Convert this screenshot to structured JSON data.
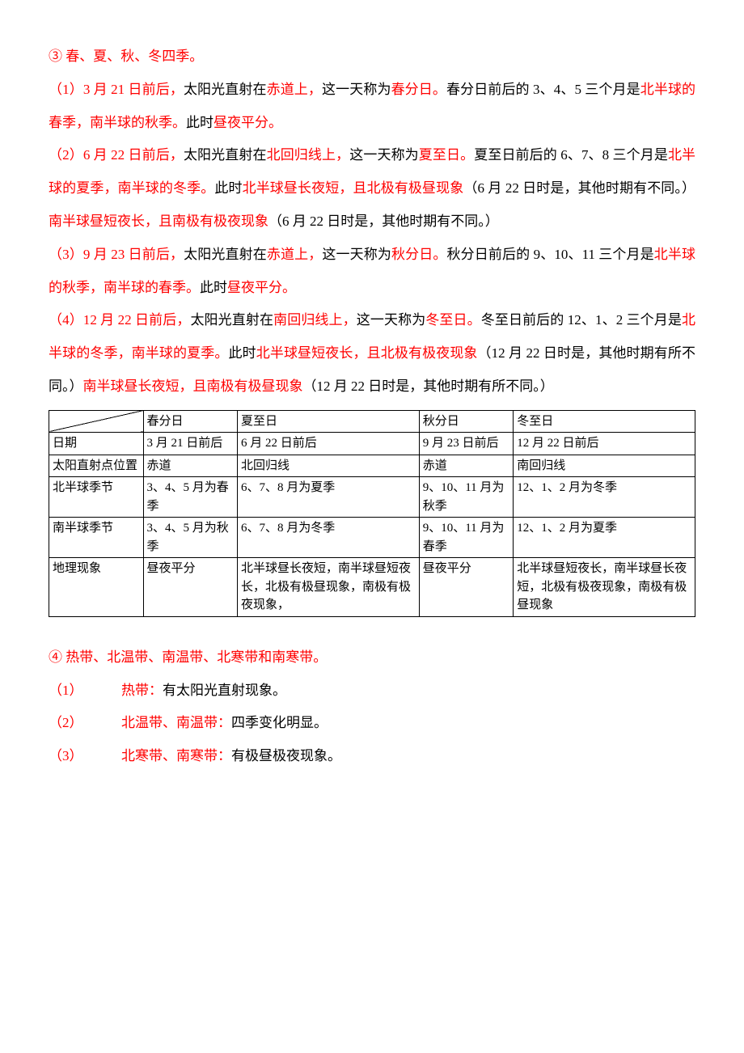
{
  "section3": {
    "title": "③ 春、夏、秋、冬四季。",
    "p1_a": "（1）3 月 21 日前后，",
    "p1_b": "太阳光直射在",
    "p1_c": "赤道上，",
    "p1_d": "这一天称为",
    "p1_e": "春分日。",
    "p1_f": "春分日前后的 3、4、5 三个月是",
    "p1_g": "北半球的春季，南半球的秋季。",
    "p1_h": "此时",
    "p1_i": "昼夜平分。",
    "p2_a": "（2）6 月 22 日前后，",
    "p2_b": "太阳光直射在",
    "p2_c": "北回归线上，",
    "p2_d": "这一天称为",
    "p2_e": "夏至日。",
    "p2_f": "夏至日前后的 6、7、8 三个月是",
    "p2_g": "北半球的夏季，南半球的冬季。",
    "p2_h": "此时",
    "p2_i": "北半球昼长夜短，且北极有极昼现象",
    "p2_j": "（6 月 22 日时是，其他时期有不同。）",
    "p2_k": "南半球昼短夜长，且南极有极夜现象",
    "p2_l": "（6 月 22 日时是，其他时期有不同。）",
    "p3_a": "（3）9 月 23 日前后，",
    "p3_b": "太阳光直射在",
    "p3_c": "赤道上，",
    "p3_d": "这一天称为",
    "p3_e": "秋分日。",
    "p3_f": "秋分日前后的 9、10、11 三个月是",
    "p3_g": "北半球的秋季，南半球的春季。",
    "p3_h": "此时",
    "p3_i": "昼夜平分。",
    "p4_a": "（4）12 月 22 日前后，",
    "p4_b": "太阳光直射在",
    "p4_c": "南回归线上，",
    "p4_d": "这一天称为",
    "p4_e": "冬至日。",
    "p4_f": "冬至日前后的 12、1、2 三个月是",
    "p4_g": "北半球的冬季，南半球的夏季。",
    "p4_h": "此时",
    "p4_i": "北半球昼短夜长，且北极有极夜现象",
    "p4_j": "（12 月 22 日时是，其他时期有所不同。）",
    "p4_k": "南半球昼长夜短，且南极有极昼现象",
    "p4_l": "（12 月 22 日时是，其他时期有所不同。）"
  },
  "table": {
    "col_widths": [
      "14%",
      "14%",
      "27%",
      "14%",
      "27%"
    ],
    "headers": [
      "",
      "春分日",
      "夏至日",
      "秋分日",
      "冬至日"
    ],
    "rows": [
      {
        "label": "日期",
        "cells": [
          "3 月 21 日前后",
          "6 月 22 日前后",
          "9 月 23 日前后",
          "12 月 22 日前后"
        ]
      },
      {
        "label": "太阳直射点位置",
        "cells": [
          "赤道",
          "北回归线",
          "赤道",
          "南回归线"
        ]
      },
      {
        "label": "北半球季节",
        "cells": [
          "3、4、5 月为春季",
          "6、7、8 月为夏季",
          "9、10、11 月为秋季",
          "12、1、2 月为冬季"
        ]
      },
      {
        "label": "南半球季节",
        "cells": [
          "3、4、5 月为秋季",
          "6、7、8 月为冬季",
          "9、10、11 月为春季",
          "12、1、2 月为夏季"
        ]
      },
      {
        "label": "地理现象",
        "cells": [
          "昼夜平分",
          "北半球昼长夜短，南半球昼短夜长，北极有极昼现象，南极有极夜现象，",
          "昼夜平分",
          "北半球昼短夜长，南半球昼长夜短，北极有极夜现象，南极有极昼现象"
        ]
      }
    ]
  },
  "section4": {
    "title": "④ 热带、北温带、南温带、北寒带和南寒带。",
    "items": [
      {
        "num": "（1）",
        "name": "热带：",
        "desc": "有太阳光直射现象。"
      },
      {
        "num": "（2）",
        "name": "北温带、南温带：",
        "desc": "四季变化明显。"
      },
      {
        "num": "（3）",
        "name": "北寒带、南寒带：",
        "desc": "有极昼极夜现象。"
      }
    ]
  }
}
